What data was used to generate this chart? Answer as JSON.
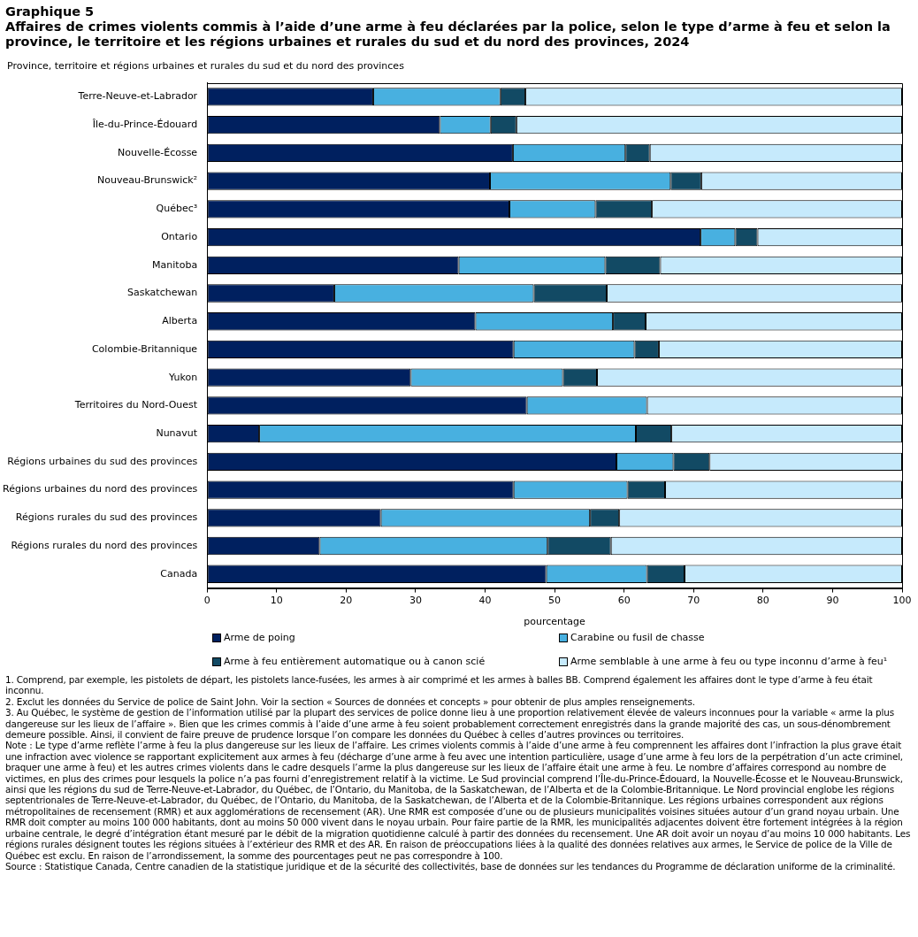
{
  "chart_data": {
    "type": "bar",
    "orientation": "horizontal",
    "stacked": true,
    "title": "Graphique 5\nAffaires de crimes violents commis à l’aide d’une arme à feu déclarées par la police, selon le type d’arme à feu et selon la province, le territoire et les régions urbaines et rurales du sud et du nord des provinces, 2024",
    "ylabel": "Province, territoire et régions urbaines et rurales du sud et du nord des provinces",
    "xlabel": "pourcentage",
    "categories": [
      "Terre-Neuve-et-Labrador",
      "Île-du-Prince-Édouard",
      "Nouvelle-Écosse",
      "Nouveau-Brunswick²",
      "Québec³",
      "Ontario",
      "Manitoba",
      "Saskatchewan",
      "Alberta",
      "Colombie-Britannique",
      "Yukon",
      "Territoires du Nord-Ouest",
      "Nunavut",
      "Régions urbaines du sud des provinces",
      "Régions urbaines du nord des provinces",
      "Régions rurales du sud des provinces",
      "Régions rurales du nord des provinces",
      "Canada"
    ],
    "series": [
      {
        "name": "Arme de poing",
        "color": "#00205f",
        "values": [
          23.9,
          33.5,
          44.0,
          40.7,
          43.5,
          71.0,
          36.2,
          18.3,
          38.6,
          44.1,
          29.3,
          46.0,
          7.5,
          58.9,
          44.1,
          25.0,
          16.2,
          48.8
        ]
      },
      {
        "name": "Carabine ou fusil de chasse",
        "color": "#48b0e0",
        "values": [
          18.3,
          7.3,
          16.2,
          26.0,
          12.4,
          5.0,
          21.1,
          28.7,
          19.8,
          17.4,
          21.9,
          17.3,
          54.2,
          8.2,
          16.4,
          30.1,
          32.8,
          14.5
        ]
      },
      {
        "name": "Arme à feu entièrement automatique ou à canon scié",
        "color": "#124a64",
        "values": [
          3.6,
          3.7,
          3.5,
          4.4,
          8.1,
          3.2,
          7.9,
          10.5,
          4.7,
          3.5,
          4.9,
          0,
          5.1,
          5.2,
          5.4,
          4.2,
          9.1,
          5.4
        ]
      },
      {
        "name": "Arme semblable à une arme à feu ou type inconnu d’arme à feu¹",
        "color": "#c6eafc",
        "values": [
          54.2,
          55.5,
          36.3,
          28.9,
          36.0,
          20.8,
          34.8,
          42.5,
          36.9,
          35.0,
          43.9,
          36.7,
          33.2,
          27.7,
          34.1,
          40.7,
          41.9,
          31.3
        ]
      }
    ],
    "xlim": [
      0,
      100
    ],
    "xticks": [
      0,
      10,
      20,
      30,
      40,
      50,
      60,
      70,
      80,
      90,
      100
    ],
    "grid": false,
    "legend": "bottom",
    "annotations": [
      "1. Comprend, par exemple, les pistolets de départ, les pistolets lance-fusées, les armes à air comprimé et les armes à balles BB. Comprend également les affaires dont le type d’arme à feu était inconnu.",
      "2. Exclut les données du Service de police de Saint John. Voir la section « Sources de données et concepts » pour obtenir de plus amples renseignements.",
      "3. Au Québec, le système de gestion de l’information utilisé par la plupart des services de police donne lieu à une proportion relativement élevée de valeurs inconnues pour la variable « arme la plus dangereuse sur les lieux de l’affaire ». Bien que les crimes commis à l’aide d’une arme à feu soient probablement correctement enregistrés dans la grande majorité des cas, un sous-dénombrement demeure possible. Ainsi, il convient de faire preuve de prudence lorsque l’on compare les données du Québec à celles d’autres provinces ou territoires.",
      "Note : Le type d’arme reflète l’arme à feu la plus dangereuse sur les lieux de l’affaire. Les crimes violents commis à l’aide d’une arme à feu comprennent les affaires dont l’infraction la plus grave était une infraction avec violence se rapportant explicitement aux armes à feu (décharge d’une arme à feu avec une intention particulière, usage d’une arme à feu lors de la perpétration d’un acte criminel, braquer une arme à feu) et les autres crimes violents dans le cadre desquels l’arme la plus dangereuse sur les lieux de l’affaire était une arme à feu. Le nombre d’affaires correspond au nombre de victimes, en plus des crimes pour lesquels la police n’a pas fourni d’enregistrement relatif à la victime. Le Sud provincial comprend l’Île-du-Prince-Édouard, la Nouvelle-Écosse et le Nouveau-Brunswick, ainsi que les régions du sud de Terre-Neuve-et-Labrador, du Québec, de l’Ontario, du Manitoba, de la Saskatchewan, de l’Alberta et de la Colombie-Britannique. Le Nord provincial englobe les régions septentrionales de Terre-Neuve-et-Labrador, du Québec, de l’Ontario, du Manitoba, de la Saskatchewan, de l’Alberta et de la Colombie-Britannique. Les régions urbaines correspondent aux régions métropolitaines de recensement (RMR) et aux agglomérations de recensement (AR). Une RMR est composée d’une ou de plusieurs municipalités voisines situées autour d’un grand noyau urbain. Une RMR doit compter au moins 100 000 habitants, dont au moins 50 000 vivent dans le noyau urbain. Pour faire partie de la RMR, les municipalités adjacentes doivent être fortement intégrées à la région urbaine centrale, le degré d’intégration étant mesuré par le débit de la migration quotidienne calculé à partir des données du recensement. Une AR doit avoir un noyau d’au moins 10 000 habitants. Les régions rurales désignent toutes les régions situées à l’extérieur des RMR et des AR. En raison de préoccupations liées à la qualité des données relatives aux armes, le Service de police de la Ville de Québec est exclu. En raison de l’arrondissement, la somme des pourcentages peut ne pas correspondre à 100.",
      "Source : Statistique Canada, Centre canadien de la statistique juridique et de la sécurité des collectivités, base de données sur les tendances du Programme de déclaration uniforme de la criminalité."
    ]
  }
}
